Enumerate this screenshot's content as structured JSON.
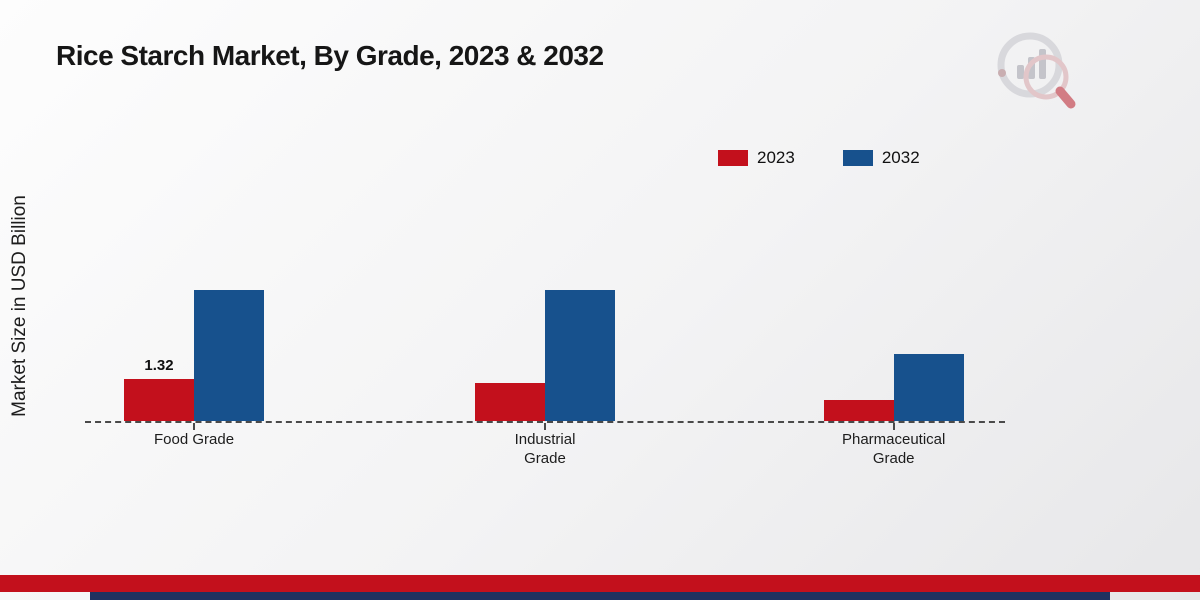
{
  "chart_data": {
    "type": "bar",
    "title": "Rice Starch Market, By Grade, 2023 & 2032",
    "ylabel": "Market Size in USD Billion",
    "xlabel": "",
    "categories": [
      "Food Grade",
      "Industrial Grade",
      "Pharmaceutical Grade"
    ],
    "category_lines": [
      [
        "Food Grade"
      ],
      [
        "Industrial",
        "Grade"
      ],
      [
        "Pharmaceutical",
        "Grade"
      ]
    ],
    "series": [
      {
        "name": "2023",
        "color": "#c3101c",
        "values": [
          1.32,
          1.2,
          0.65
        ],
        "labels": [
          "1.32",
          "",
          ""
        ]
      },
      {
        "name": "2032",
        "color": "#17518d",
        "values": [
          4.1,
          4.1,
          2.1
        ],
        "labels": [
          "",
          "",
          ""
        ]
      }
    ],
    "ylim": [
      0,
      4.5
    ],
    "grid": "off",
    "baseline": "dashed",
    "legend_position": "top-right"
  },
  "colors": {
    "bar_2023": "#c3101c",
    "bar_2032": "#17518d",
    "footer_red": "#c3101c",
    "footer_navy": "#20315f",
    "baseline": "#4a4a4a"
  }
}
